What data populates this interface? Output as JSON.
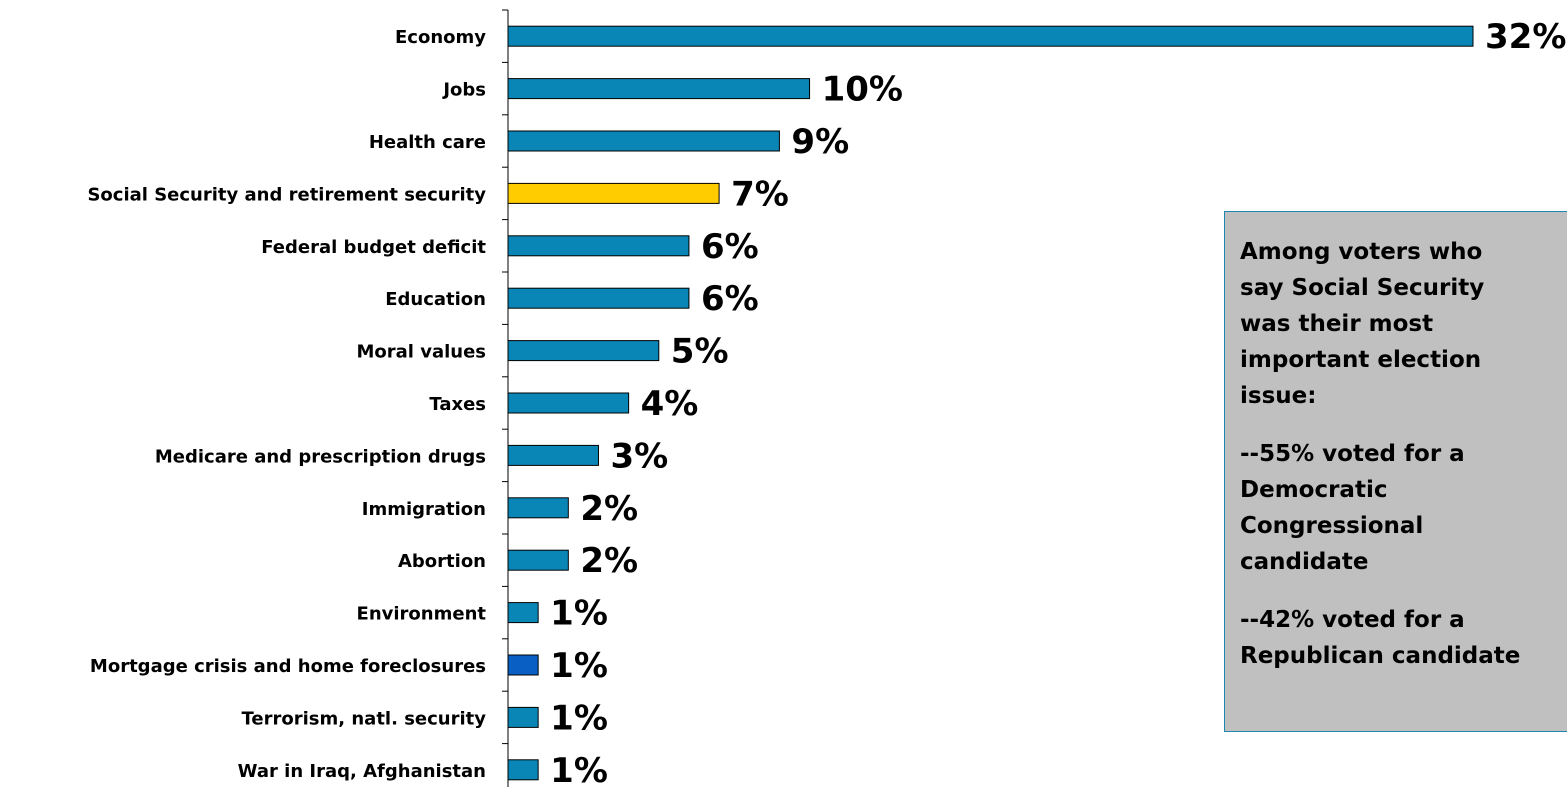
{
  "chart_data": {
    "type": "bar",
    "orientation": "horizontal",
    "categories": [
      "Economy",
      "Jobs",
      "Health care",
      "Social Security and retirement security",
      "Federal budget deficit",
      "Education",
      "Moral values",
      "Taxes",
      "Medicare and prescription drugs",
      "Immigration",
      "Abortion",
      "Environment",
      "Mortgage crisis and home foreclosures",
      "Terrorism, natl. security",
      "War in Iraq, Afghanistan"
    ],
    "values": [
      32,
      10,
      9,
      7,
      6,
      6,
      5,
      4,
      3,
      2,
      2,
      1,
      1,
      1,
      1
    ],
    "value_labels": [
      "32%",
      "10%",
      "9%",
      "7%",
      "6%",
      "6%",
      "5%",
      "4%",
      "3%",
      "2%",
      "2%",
      "1%",
      "1%",
      "1%",
      "1%"
    ],
    "bar_colors": [
      "#0a86b6",
      "#0a86b6",
      "#0a86b6",
      "#ffcc00",
      "#0a86b6",
      "#0a86b6",
      "#0a86b6",
      "#0a86b6",
      "#0a86b6",
      "#0a86b6",
      "#0a86b6",
      "#0a86b6",
      "#0a5fc4",
      "#0a86b6",
      "#0a86b6"
    ],
    "xlim": [
      0,
      32
    ],
    "title": "",
    "xlabel": "",
    "ylabel": "",
    "grid": false,
    "legend": "none"
  },
  "callout": {
    "paragraphs": [
      "Among voters who\nsay Social Security\nwas their most\nimportant election\nissue:",
      "--55% voted for a\nDemocratic\nCongressional\ncandidate",
      "--42% voted for  a\nRepublican candidate"
    ]
  }
}
